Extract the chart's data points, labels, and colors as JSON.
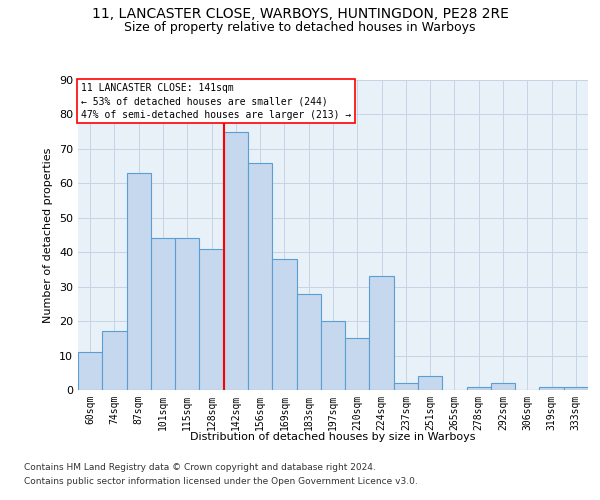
{
  "title1": "11, LANCASTER CLOSE, WARBOYS, HUNTINGDON, PE28 2RE",
  "title2": "Size of property relative to detached houses in Warboys",
  "xlabel": "Distribution of detached houses by size in Warboys",
  "ylabel": "Number of detached properties",
  "footnote1": "Contains HM Land Registry data © Crown copyright and database right 2024.",
  "footnote2": "Contains public sector information licensed under the Open Government Licence v3.0.",
  "categories": [
    "60sqm",
    "74sqm",
    "87sqm",
    "101sqm",
    "115sqm",
    "128sqm",
    "142sqm",
    "156sqm",
    "169sqm",
    "183sqm",
    "197sqm",
    "210sqm",
    "224sqm",
    "237sqm",
    "251sqm",
    "265sqm",
    "278sqm",
    "292sqm",
    "306sqm",
    "319sqm",
    "333sqm"
  ],
  "values": [
    11,
    17,
    63,
    44,
    44,
    41,
    75,
    66,
    38,
    28,
    20,
    15,
    33,
    2,
    4,
    0,
    1,
    2,
    0,
    1,
    1
  ],
  "bar_color": "#c5d8ed",
  "bar_edge_color": "#5a9fd4",
  "vline_x_idx": 5.5,
  "vline_color": "red",
  "annotation_line1": "11 LANCASTER CLOSE: 141sqm",
  "annotation_line2": "← 53% of detached houses are smaller (244)",
  "annotation_line3": "47% of semi-detached houses are larger (213) →",
  "ylim": [
    0,
    90
  ],
  "yticks": [
    0,
    10,
    20,
    30,
    40,
    50,
    60,
    70,
    80,
    90
  ],
  "grid_color": "#c5d5e5",
  "bg_color": "#e8f0f8",
  "title1_fontsize": 10,
  "title2_fontsize": 9,
  "axis_label_fontsize": 8,
  "tick_fontsize": 7,
  "footnote_fontsize": 6.5
}
